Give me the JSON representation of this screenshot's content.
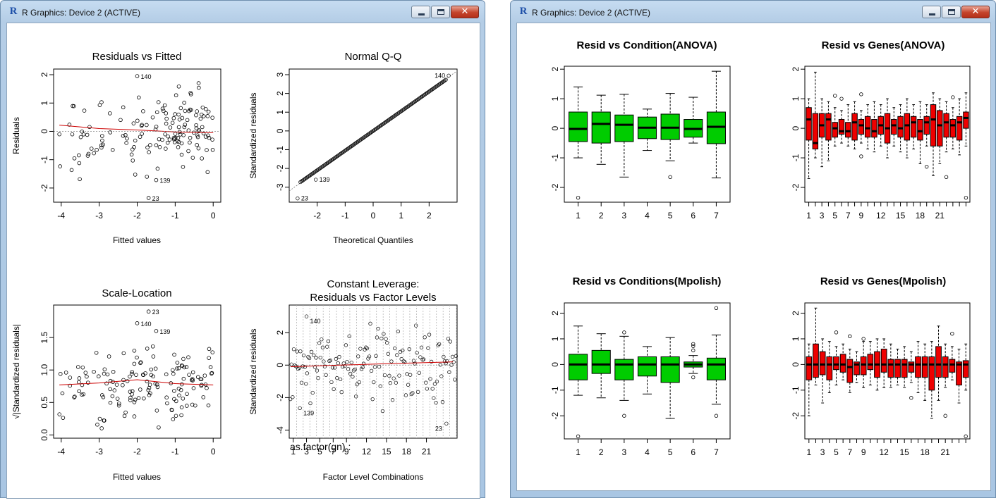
{
  "windows": [
    {
      "title": "R Graphics: Device 2 (ACTIVE)",
      "minimize": "minimize",
      "maximize": "maximize",
      "close": "close"
    },
    {
      "title": "R Graphics: Device 2 (ACTIVE)",
      "minimize": "minimize",
      "maximize": "maximize",
      "close": "close"
    }
  ],
  "icons": {
    "app": "r-logo-icon",
    "minimize": "minimize-icon",
    "maximize": "maximize-icon",
    "close": "close-icon"
  },
  "colors": {
    "green_box": "#00cc00",
    "red_box": "#ee0000",
    "smoother": "#cc0000"
  },
  "chart_data": [
    {
      "type": "scatter",
      "panel": "left-1",
      "title": "Residuals vs Fitted",
      "xlabel": "Fitted values",
      "ylabel": "Residuals",
      "xlim": [
        -4.2,
        0.2
      ],
      "ylim": [
        -2.5,
        2.2
      ],
      "x_ticks": [
        "-4",
        "-3",
        "-2",
        "-1",
        "0"
      ],
      "y_ticks": [
        "-2",
        "-1",
        "0",
        "1",
        "2"
      ],
      "labeled_points": [
        {
          "label": "140",
          "x": -2.0,
          "y": 1.95
        },
        {
          "label": "139",
          "x": -1.5,
          "y": -1.72
        },
        {
          "label": "23",
          "x": -1.7,
          "y": -2.35
        }
      ],
      "smoother": [
        [
          -4.05,
          0.22
        ],
        [
          -3.0,
          0.1
        ],
        [
          -2.0,
          0.05
        ],
        [
          -1.0,
          -0.02
        ],
        [
          0.0,
          -0.05
        ]
      ]
    },
    {
      "type": "scatter",
      "panel": "left-2",
      "title": "Normal Q-Q",
      "xlabel": "Theoretical Quantiles",
      "ylabel": "Standardized residuals",
      "xlim": [
        -3,
        3
      ],
      "ylim": [
        -3.8,
        3.3
      ],
      "x_ticks": [
        "-2",
        "-1",
        "0",
        "1",
        "2"
      ],
      "y_ticks": [
        "-3",
        "-2",
        "-1",
        "0",
        "1",
        "2",
        "3"
      ],
      "labeled_points": [
        {
          "label": "140",
          "x": 2.7,
          "y": 2.95
        },
        {
          "label": "139",
          "x": -2.05,
          "y": -2.6
        },
        {
          "label": "23",
          "x": -2.7,
          "y": -3.6
        }
      ]
    },
    {
      "type": "scatter",
      "panel": "left-3",
      "title": "Scale-Location",
      "xlabel": "Fitted values",
      "ylabel": "√|Standardized residuals|",
      "xlim": [
        -4.2,
        0.2
      ],
      "ylim": [
        -0.05,
        2.0
      ],
      "x_ticks": [
        "-4",
        "-3",
        "-2",
        "-1",
        "0"
      ],
      "y_ticks": [
        "0.0",
        "0.5",
        "1.0",
        "1.5"
      ],
      "labeled_points": [
        {
          "label": "23",
          "x": -1.7,
          "y": 1.9
        },
        {
          "label": "140",
          "x": -2.0,
          "y": 1.72
        },
        {
          "label": "139",
          "x": -1.5,
          "y": 1.6
        }
      ],
      "smoother": [
        [
          -4.05,
          0.77
        ],
        [
          -3.0,
          0.8
        ],
        [
          -2.0,
          0.85
        ],
        [
          -1.0,
          0.79
        ],
        [
          0.0,
          0.77
        ]
      ]
    },
    {
      "type": "scatter",
      "panel": "left-4",
      "title": "Constant Leverage:",
      "subtitle": "Residuals vs Factor Levels",
      "xlabel": "Factor Level Combinations",
      "ylabel": "Standardized residuals",
      "factor_label": "as.factor(gn) :",
      "ylim": [
        -4.5,
        3.7
      ],
      "x_ticks": [
        "1",
        "3",
        "5",
        "7",
        "9",
        "12",
        "15",
        "18",
        "21"
      ],
      "y_ticks": [
        "-4",
        "-2",
        "0",
        "2"
      ],
      "labeled_points": [
        {
          "label": "140",
          "x": 3,
          "y": 3.0
        },
        {
          "label": "139",
          "x": 2,
          "y": -2.65
        },
        {
          "label": "23",
          "x": 24,
          "y": -3.6
        }
      ]
    },
    {
      "type": "box",
      "panel": "right-1",
      "title": "Resid vs Condition(ANOVA)",
      "color": "#00cc00",
      "categories": [
        "1",
        "2",
        "3",
        "4",
        "5",
        "6",
        "7"
      ],
      "ylim": [
        -2.5,
        2.1
      ],
      "y_ticks": [
        "-2",
        "-1",
        "0",
        "1",
        "2"
      ],
      "boxes": [
        {
          "min": -1.0,
          "q1": -0.45,
          "med": -0.02,
          "q3": 0.55,
          "max": 1.4,
          "out": [
            -2.35
          ]
        },
        {
          "min": -1.22,
          "q1": -0.5,
          "med": 0.15,
          "q3": 0.55,
          "max": 1.12,
          "out": []
        },
        {
          "min": -1.65,
          "q1": -0.45,
          "med": 0.12,
          "q3": 0.45,
          "max": 1.15,
          "out": []
        },
        {
          "min": -0.75,
          "q1": -0.35,
          "med": 0.02,
          "q3": 0.38,
          "max": 0.65,
          "out": []
        },
        {
          "min": -1.1,
          "q1": -0.38,
          "med": 0.02,
          "q3": 0.48,
          "max": 1.18,
          "out": [
            -1.65
          ]
        },
        {
          "min": -0.5,
          "q1": -0.3,
          "med": -0.02,
          "q3": 0.3,
          "max": 1.05,
          "out": []
        },
        {
          "min": -1.68,
          "q1": -0.52,
          "med": 0.05,
          "q3": 0.55,
          "max": 1.93,
          "out": []
        }
      ]
    },
    {
      "type": "box",
      "panel": "right-2",
      "title": "Resid vs Genes(ANOVA)",
      "color": "#ee0000",
      "categories": [
        "1",
        "3",
        "5",
        "7",
        "9",
        "12",
        "15",
        "18",
        "21"
      ],
      "ylim": [
        -2.5,
        2.1
      ],
      "y_ticks": [
        "-2",
        "-1",
        "0",
        "1",
        "2"
      ],
      "boxes": [
        {
          "min": -1.7,
          "q1": -0.4,
          "med": 0.3,
          "q3": 0.7,
          "max": 1.0,
          "out": []
        },
        {
          "min": -1.0,
          "q1": -0.7,
          "med": -0.5,
          "q3": 0.5,
          "max": 1.9,
          "out": []
        },
        {
          "min": -1.3,
          "q1": -0.3,
          "med": 0.1,
          "q3": 0.5,
          "max": 1.0,
          "out": []
        },
        {
          "min": -1.1,
          "q1": -0.4,
          "med": 0.3,
          "q3": 0.5,
          "max": 0.9,
          "out": []
        },
        {
          "min": -0.6,
          "q1": -0.3,
          "med": 0.0,
          "q3": 0.2,
          "max": 0.7,
          "out": [
            1.1
          ]
        },
        {
          "min": -0.5,
          "q1": -0.2,
          "med": -0.1,
          "q3": 0.3,
          "max": 0.6,
          "out": [
            1.0
          ]
        },
        {
          "min": -0.6,
          "q1": -0.3,
          "med": -0.1,
          "q3": 0.2,
          "max": 0.8,
          "out": []
        },
        {
          "min": -0.7,
          "q1": -0.4,
          "med": 0.2,
          "q3": 0.5,
          "max": 0.9,
          "out": []
        },
        {
          "min": -0.5,
          "q1": -0.2,
          "med": 0.1,
          "q3": 0.3,
          "max": 0.6,
          "out": [
            1.15,
            -0.95
          ]
        },
        {
          "min": -0.7,
          "q1": -0.3,
          "med": 0.0,
          "q3": 0.4,
          "max": 0.8,
          "out": []
        },
        {
          "min": -0.8,
          "q1": -0.3,
          "med": -0.1,
          "q3": 0.3,
          "max": 0.9,
          "out": []
        },
        {
          "min": -0.6,
          "q1": -0.2,
          "med": 0.1,
          "q3": 0.4,
          "max": 0.8,
          "out": []
        },
        {
          "min": -1.0,
          "q1": -0.5,
          "med": 0.0,
          "q3": 0.5,
          "max": 1.0,
          "out": []
        },
        {
          "min": -0.6,
          "q1": -0.2,
          "med": 0.1,
          "q3": 0.3,
          "max": 0.7,
          "out": []
        },
        {
          "min": -0.8,
          "q1": -0.3,
          "med": 0.0,
          "q3": 0.4,
          "max": 0.8,
          "out": []
        },
        {
          "min": -1.0,
          "q1": -0.4,
          "med": 0.1,
          "q3": 0.5,
          "max": 1.0,
          "out": []
        },
        {
          "min": -0.7,
          "q1": -0.3,
          "med": 0.2,
          "q3": 0.4,
          "max": 0.8,
          "out": []
        },
        {
          "min": -1.2,
          "q1": -0.4,
          "med": -0.1,
          "q3": 0.3,
          "max": 0.9,
          "out": []
        },
        {
          "min": -0.6,
          "q1": -0.2,
          "med": 0.2,
          "q3": 0.4,
          "max": 0.8,
          "out": [
            -1.3
          ]
        },
        {
          "min": -1.6,
          "q1": -0.6,
          "med": 0.3,
          "q3": 0.8,
          "max": 1.2,
          "out": []
        },
        {
          "min": -1.2,
          "q1": -0.6,
          "med": 0.1,
          "q3": 0.6,
          "max": 1.0,
          "out": []
        },
        {
          "min": -0.8,
          "q1": -0.3,
          "med": 0.2,
          "q3": 0.5,
          "max": 0.9,
          "out": [
            -1.65
          ]
        },
        {
          "min": -0.7,
          "q1": -0.3,
          "med": 0.1,
          "q3": 0.3,
          "max": 0.7,
          "out": [
            1.05
          ]
        },
        {
          "min": -0.9,
          "q1": -0.4,
          "med": 0.2,
          "q3": 0.4,
          "max": 1.0,
          "out": []
        },
        {
          "min": -0.6,
          "q1": 0.0,
          "med": 0.35,
          "q3": 0.55,
          "max": 1.2,
          "out": [
            -2.35
          ]
        }
      ]
    },
    {
      "type": "box",
      "panel": "right-3",
      "title": "Resid vs Conditions(Mpolish)",
      "color": "#00cc00",
      "categories": [
        "1",
        "2",
        "3",
        "4",
        "5",
        "6",
        "7"
      ],
      "ylim": [
        -2.9,
        2.4
      ],
      "y_ticks": [
        "-2",
        "-1",
        "0",
        "1",
        "2"
      ],
      "boxes": [
        {
          "min": -1.2,
          "q1": -0.6,
          "med": 0.0,
          "q3": 0.4,
          "max": 1.5,
          "out": [
            -2.8
          ]
        },
        {
          "min": -1.3,
          "q1": -0.35,
          "med": 0.0,
          "q3": 0.55,
          "max": 1.2,
          "out": []
        },
        {
          "min": -1.4,
          "q1": -0.6,
          "med": 0.0,
          "q3": 0.2,
          "max": 1.1,
          "out": [
            1.25,
            -2.0
          ]
        },
        {
          "min": -1.15,
          "q1": -0.45,
          "med": 0.0,
          "q3": 0.3,
          "max": 0.7,
          "out": []
        },
        {
          "min": -2.1,
          "q1": -0.7,
          "med": 0.0,
          "q3": 0.3,
          "max": 1.05,
          "out": []
        },
        {
          "min": -0.35,
          "q1": -0.1,
          "med": 0.0,
          "q3": 0.1,
          "max": 0.35,
          "out": [
            0.8,
            0.72,
            0.55,
            -0.5
          ]
        },
        {
          "min": -1.55,
          "q1": -0.6,
          "med": 0.0,
          "q3": 0.25,
          "max": 1.15,
          "out": [
            2.2,
            -2.0
          ]
        }
      ]
    },
    {
      "type": "box",
      "panel": "right-4",
      "title": "Resid vs Genes(Mpolish)",
      "color": "#ee0000",
      "categories": [
        "1",
        "3",
        "5",
        "7",
        "9",
        "12",
        "15",
        "18",
        "21"
      ],
      "ylim": [
        -2.9,
        2.4
      ],
      "y_ticks": [
        "-2",
        "-1",
        "0",
        "1",
        "2"
      ],
      "boxes": [
        {
          "min": -2.0,
          "q1": -0.6,
          "med": 0.0,
          "q3": 0.3,
          "max": 0.8,
          "out": []
        },
        {
          "min": -0.8,
          "q1": -0.5,
          "med": 0.0,
          "q3": 0.8,
          "max": 2.2,
          "out": []
        },
        {
          "min": -1.5,
          "q1": -0.4,
          "med": 0.0,
          "q3": 0.5,
          "max": 1.0,
          "out": []
        },
        {
          "min": -1.1,
          "q1": -0.6,
          "med": 0.0,
          "q3": 0.3,
          "max": 0.9,
          "out": []
        },
        {
          "min": -0.8,
          "q1": -0.2,
          "med": 0.0,
          "q3": 0.3,
          "max": 0.7,
          "out": [
            1.25
          ]
        },
        {
          "min": -0.6,
          "q1": -0.3,
          "med": 0.0,
          "q3": 0.4,
          "max": 0.8,
          "out": []
        },
        {
          "min": -1.1,
          "q1": -0.7,
          "med": -0.1,
          "q3": 0.2,
          "max": 0.6,
          "out": [
            1.1
          ]
        },
        {
          "min": -0.7,
          "q1": -0.4,
          "med": 0.0,
          "q3": 0.1,
          "max": 0.5,
          "out": []
        },
        {
          "min": -0.9,
          "q1": -0.4,
          "med": 0.0,
          "q3": 0.3,
          "max": 0.9,
          "out": [
            1.0
          ]
        },
        {
          "min": -0.8,
          "q1": -0.2,
          "med": 0.0,
          "q3": 0.4,
          "max": 0.9,
          "out": []
        },
        {
          "min": -1.0,
          "q1": -0.5,
          "med": 0.0,
          "q3": 0.5,
          "max": 1.0,
          "out": []
        },
        {
          "min": -0.9,
          "q1": -0.3,
          "med": 0.0,
          "q3": 0.6,
          "max": 1.0,
          "out": []
        },
        {
          "min": -0.9,
          "q1": -0.5,
          "med": 0.0,
          "q3": 0.2,
          "max": 0.8,
          "out": []
        },
        {
          "min": -0.8,
          "q1": -0.5,
          "med": 0.0,
          "q3": 0.2,
          "max": 0.6,
          "out": []
        },
        {
          "min": -0.9,
          "q1": -0.5,
          "med": 0.0,
          "q3": 0.2,
          "max": 0.7,
          "out": []
        },
        {
          "min": -0.7,
          "q1": -0.3,
          "med": 0.0,
          "q3": 0.1,
          "max": 0.5,
          "out": [
            -1.3
          ]
        },
        {
          "min": -1.1,
          "q1": -0.5,
          "med": 0.0,
          "q3": 0.3,
          "max": 0.9,
          "out": []
        },
        {
          "min": -1.4,
          "q1": -0.5,
          "med": 0.0,
          "q3": 0.3,
          "max": 0.8,
          "out": []
        },
        {
          "min": -2.1,
          "q1": -1.0,
          "med": 0.0,
          "q3": 0.3,
          "max": 0.9,
          "out": []
        },
        {
          "min": -1.4,
          "q1": -0.5,
          "med": 0.0,
          "q3": 0.7,
          "max": 1.5,
          "out": []
        },
        {
          "min": -0.9,
          "q1": -0.5,
          "med": 0.0,
          "q3": 0.3,
          "max": 0.8,
          "out": [
            -2.0
          ]
        },
        {
          "min": -0.6,
          "q1": -0.3,
          "med": 0.0,
          "q3": 0.2,
          "max": 0.7,
          "out": [
            1.2
          ]
        },
        {
          "min": -1.5,
          "q1": -0.8,
          "med": 0.0,
          "q3": 0.1,
          "max": 0.6,
          "out": []
        },
        {
          "min": -1.0,
          "q1": -0.5,
          "med": 0.0,
          "q3": 0.15,
          "max": 0.8,
          "out": [
            -2.8
          ]
        }
      ]
    }
  ]
}
